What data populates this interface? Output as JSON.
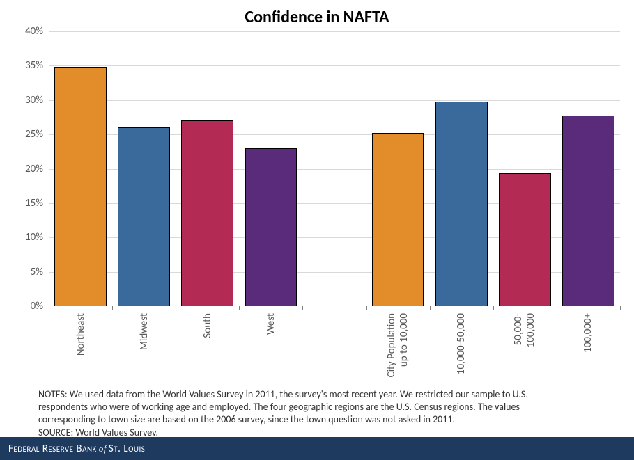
{
  "chart": {
    "type": "bar",
    "title": "Confidence in NAFTA",
    "title_fontsize": 24,
    "title_color": "#000000",
    "background_color": "#ffffff",
    "grid_color": "#d9d9d9",
    "axis_color": "#808080",
    "ylim": [
      0,
      40
    ],
    "ytick_step": 5,
    "ytick_format_percent": true,
    "label_fontsize": 15,
    "label_color": "#595959",
    "bar_border_color": "#000000",
    "groups": [
      {
        "gap_before": false,
        "bars": [
          {
            "label": "Northeast",
            "value": 34.8,
            "color": "#e28c2a"
          },
          {
            "label": "Midwest",
            "value": 26.0,
            "color": "#3a6a9b"
          },
          {
            "label": "South",
            "value": 27.0,
            "color": "#b32a55"
          },
          {
            "label": "West",
            "value": 23.0,
            "color": "#5a2b7a"
          }
        ]
      },
      {
        "gap_before": true,
        "bars": [
          {
            "label": "City Population up to 10,000",
            "value": 25.2,
            "color": "#e28c2a",
            "multiline": [
              "City Population",
              "up to 10,000"
            ]
          },
          {
            "label": "10,000-50,000",
            "value": 29.8,
            "color": "#3a6a9b"
          },
          {
            "label": "50,000-100,000",
            "value": 19.3,
            "color": "#b32a55",
            "multiline": [
              "50,000-",
              "100,000"
            ]
          },
          {
            "label": "100,000+",
            "value": 27.7,
            "color": "#5a2b7a"
          }
        ]
      }
    ],
    "notes_lines": [
      "NOTES: We used data from the World Values Survey in 2011, the survey's most recent year. We restricted our sample to U.S.",
      "respondents who were of working age and employed. The four geographic regions are the U.S. Census regions. The values",
      "corresponding to town size are based on the 2006 survey, since the town question was not asked in 2011.",
      "SOURCE: World Values Survey."
    ],
    "notes_fontsize": 14,
    "notes_color": "#333333"
  },
  "footer": {
    "text_parts": [
      "Federal Reserve Bank",
      "of",
      "St. Louis"
    ],
    "bg_color": "#1e3a5f",
    "text_color": "#ffffff",
    "fontsize": 15
  }
}
